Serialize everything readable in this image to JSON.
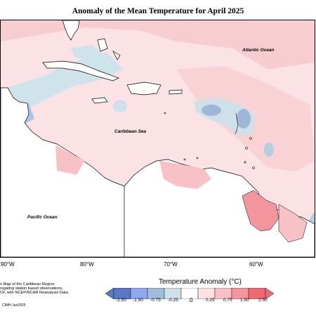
{
  "title": "Anomaly of the Mean Temperature for April 2025",
  "map": {
    "labels": {
      "atlantic": "Atlantic Ocean",
      "caribbean": "Caribbean Sea",
      "pacific": "Pacific Ocean"
    },
    "longitudes": [
      "90°W",
      "80°W",
      "70°W",
      "60°W"
    ]
  },
  "note": {
    "lines": [
      "n Map of the Caribbean Region",
      "regating station based observations,",
      "CF, with NCEP/NCAR Reanalysis Data."
    ],
    "copyright": "CIMH Jun2025"
  },
  "legend": {
    "title": "Temperature Anomaly (°C)",
    "ticks": [
      "-2.50",
      "-1.50",
      "-0.75",
      "-0.25",
      "0",
      "0.25",
      "0.75",
      "1.50",
      "2.50"
    ],
    "colors": [
      "#5a78c4",
      "#8fa8f0",
      "#9fbcdc",
      "#cfe0ea",
      "#ffffff",
      "#fde1e3",
      "#f8c1c6",
      "#f2959c",
      "#ee6a73"
    ]
  }
}
